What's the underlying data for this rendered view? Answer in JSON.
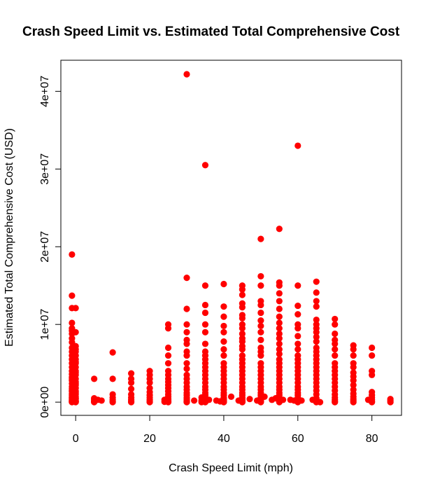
{
  "chart_data": {
    "type": "scatter",
    "title": "Crash Speed Limit vs. Estimated Total Comprehensive Cost",
    "xlabel": "Crash Speed Limit (mph)",
    "ylabel": "Estimated Total Comprehensive Cost (USD)",
    "xlim": [
      -4,
      88
    ],
    "ylim": [
      -1700000,
      44000000
    ],
    "xticks": [
      0,
      20,
      40,
      60,
      80
    ],
    "xtick_labels": [
      "0",
      "20",
      "40",
      "60",
      "80"
    ],
    "yticks": [
      0,
      10000000,
      20000000,
      30000000,
      40000000
    ],
    "ytick_labels": [
      "0e+00",
      "1e+07",
      "2e+07",
      "3e+07",
      "4e+07"
    ],
    "point_color": "#ff0000",
    "grid": false,
    "series": [
      {
        "x": [
          -1,
          -1,
          -1,
          -1,
          -1,
          -1,
          -1,
          -1,
          -1,
          -1,
          -1,
          -1,
          -1,
          -1,
          -1,
          -1,
          -1,
          -1,
          -1,
          -1,
          -1,
          -1,
          -1,
          -1,
          -1,
          -1,
          -1,
          -1,
          -1,
          -1,
          -1,
          -1,
          -1,
          -1,
          -1,
          -1,
          0,
          0,
          0,
          0,
          0,
          0,
          0,
          0,
          0,
          0,
          0,
          0,
          0,
          0,
          0,
          0,
          0,
          0,
          0,
          0,
          0,
          0,
          0,
          0,
          0,
          0,
          0,
          0,
          5,
          5,
          5,
          5,
          5,
          5,
          6,
          7,
          10,
          10,
          10,
          10,
          10,
          10,
          10,
          15,
          15,
          15,
          15,
          15,
          15,
          15,
          15,
          15,
          20,
          20,
          20,
          20,
          20,
          20,
          20,
          20,
          20,
          20,
          20,
          24,
          24,
          25,
          25,
          25,
          25,
          25,
          25,
          25,
          25,
          25,
          25,
          25,
          25,
          25,
          25,
          25,
          25,
          25,
          25,
          25,
          30,
          30,
          30,
          30,
          30,
          30,
          30,
          30,
          30,
          30,
          30,
          30,
          30,
          30,
          30,
          30,
          30,
          30,
          30,
          30,
          30,
          30,
          30,
          30,
          32,
          34,
          34,
          34,
          35,
          35,
          35,
          35,
          35,
          35,
          35,
          35,
          35,
          35,
          35,
          35,
          35,
          35,
          35,
          35,
          35,
          35,
          35,
          35,
          35,
          35,
          35,
          35,
          35,
          35,
          36,
          38,
          39,
          40,
          40,
          40,
          40,
          40,
          40,
          40,
          40,
          40,
          40,
          40,
          40,
          40,
          40,
          40,
          40,
          40,
          40,
          40,
          40,
          40,
          40,
          40,
          42,
          44,
          45,
          45,
          45,
          45,
          45,
          45,
          45,
          45,
          45,
          45,
          45,
          45,
          45,
          45,
          45,
          45,
          45,
          45,
          45,
          45,
          45,
          45,
          45,
          45,
          45,
          45,
          45,
          45,
          45,
          45,
          45,
          45,
          47,
          49,
          50,
          50,
          50,
          50,
          50,
          50,
          50,
          50,
          50,
          50,
          50,
          50,
          50,
          50,
          50,
          50,
          50,
          50,
          50,
          50,
          50,
          50,
          50,
          50,
          50,
          50,
          50,
          50,
          51,
          53,
          54,
          55,
          55,
          55,
          55,
          55,
          55,
          55,
          55,
          55,
          55,
          55,
          55,
          55,
          55,
          55,
          55,
          55,
          55,
          55,
          55,
          55,
          55,
          55,
          55,
          55,
          55,
          55,
          55,
          55,
          55,
          56,
          58,
          59,
          60,
          60,
          60,
          60,
          60,
          60,
          60,
          60,
          60,
          60,
          60,
          60,
          60,
          60,
          60,
          60,
          60,
          60,
          60,
          60,
          60,
          60,
          60,
          60,
          60,
          60,
          61,
          64,
          65,
          65,
          65,
          65,
          65,
          65,
          65,
          65,
          65,
          65,
          65,
          65,
          65,
          65,
          65,
          65,
          65,
          65,
          65,
          65,
          65,
          65,
          65,
          65,
          65,
          66,
          70,
          70,
          70,
          70,
          70,
          70,
          70,
          70,
          70,
          70,
          70,
          70,
          70,
          70,
          70,
          70,
          70,
          70,
          70,
          70,
          75,
          75,
          75,
          75,
          75,
          75,
          75,
          75,
          75,
          75,
          75,
          75,
          75,
          75,
          75,
          79,
          80,
          80,
          80,
          80,
          80,
          80,
          80,
          80,
          80,
          80,
          85,
          85,
          85
        ],
        "y": [
          19000000,
          13700000,
          12100000,
          10200000,
          9500000,
          8800000,
          7700000,
          7000000,
          6500000,
          6000000,
          5500000,
          5000000,
          4500000,
          4000000,
          3600000,
          3200000,
          2800000,
          2400000,
          2000000,
          1700000,
          1400000,
          1100000,
          900000,
          700000,
          500000,
          350000,
          200000,
          100000,
          50000,
          0,
          8200000,
          9200000,
          3000000,
          1500000,
          600000,
          250000,
          12100000,
          9000000,
          7200000,
          6500000,
          6000000,
          5500000,
          5000000,
          4500000,
          4000000,
          3500000,
          3000000,
          2600000,
          2200000,
          1800000,
          1400000,
          1000000,
          700000,
          400000,
          200000,
          100000,
          0,
          6800000,
          5200000,
          3800000,
          2400000,
          1200000,
          500000,
          50000,
          3000000,
          500000,
          300000,
          150000,
          50000,
          0,
          300000,
          200000,
          6400000,
          3000000,
          1000000,
          600000,
          300000,
          100000,
          0,
          3700000,
          3000000,
          2500000,
          1700000,
          1000000,
          600000,
          300000,
          100000,
          0,
          4000000,
          3500000,
          3000000,
          2500000,
          1800000,
          1300000,
          900000,
          600000,
          300000,
          100000,
          0,
          300000,
          50000,
          10000000,
          9500000,
          7000000,
          6000000,
          5000000,
          4000000,
          3500000,
          3000000,
          2600000,
          2200000,
          1800000,
          1400000,
          1000000,
          700000,
          400000,
          200000,
          100000,
          50000,
          0,
          42200000,
          16000000,
          12000000,
          10000000,
          9000000,
          7500000,
          6500000,
          6000000,
          5000000,
          4300000,
          3500000,
          3000000,
          2500000,
          2000000,
          1600000,
          1200000,
          900000,
          600000,
          400000,
          200000,
          100000,
          50000,
          0,
          8000000,
          200000,
          600000,
          200000,
          0,
          30500000,
          15000000,
          12500000,
          11500000,
          10000000,
          9000000,
          7500000,
          6500000,
          6000000,
          5000000,
          4500000,
          4000000,
          3500000,
          3000000,
          2500000,
          2000000,
          1600000,
          1200000,
          900000,
          600000,
          400000,
          200000,
          100000,
          50000,
          0,
          5500000,
          300000,
          200000,
          100000,
          15200000,
          12300000,
          11000000,
          9800000,
          9000000,
          7800000,
          6800000,
          6000000,
          5000000,
          4500000,
          4000000,
          3500000,
          3000000,
          2500000,
          2000000,
          1600000,
          1200000,
          900000,
          600000,
          400000,
          200000,
          100000,
          0,
          700000,
          200000,
          15000000,
          14500000,
          13800000,
          12700000,
          12200000,
          11200000,
          10800000,
          10000000,
          9500000,
          8800000,
          8200000,
          7800000,
          7200000,
          6800000,
          6000000,
          5500000,
          5000000,
          4500000,
          4000000,
          3500000,
          3000000,
          2500000,
          2000000,
          1600000,
          1200000,
          900000,
          600000,
          400000,
          200000,
          100000,
          50000,
          0,
          400000,
          200000,
          21000000,
          16200000,
          15000000,
          13000000,
          12500000,
          11500000,
          10500000,
          9800000,
          9000000,
          8000000,
          7000000,
          6500000,
          6000000,
          5000000,
          4500000,
          4000000,
          3500000,
          3000000,
          2500000,
          2000000,
          1600000,
          1200000,
          900000,
          600000,
          400000,
          200000,
          100000,
          0,
          700000,
          300000,
          500000,
          22300000,
          15400000,
          15000000,
          14000000,
          13000000,
          12000000,
          11000000,
          10200000,
          9500000,
          8800000,
          8200000,
          7500000,
          6800000,
          6200000,
          5500000,
          5000000,
          4500000,
          4000000,
          3500000,
          3000000,
          2500000,
          2000000,
          1600000,
          1200000,
          900000,
          600000,
          400000,
          200000,
          100000,
          0,
          300000,
          300000,
          200000,
          33000000,
          15000000,
          12400000,
          11300000,
          10000000,
          9500000,
          8500000,
          7500000,
          6800000,
          6000000,
          5500000,
          5000000,
          4500000,
          4000000,
          3500000,
          3000000,
          2500000,
          2000000,
          1600000,
          1200000,
          900000,
          600000,
          400000,
          200000,
          100000,
          0,
          200000,
          300000,
          15500000,
          14100000,
          13000000,
          12300000,
          10600000,
          10000000,
          9500000,
          9000000,
          8400000,
          7800000,
          7000000,
          6500000,
          6000000,
          5500000,
          5000000,
          4500000,
          4000000,
          3500000,
          3000000,
          2500000,
          2000000,
          1500000,
          1000000,
          500000,
          0,
          0,
          10700000,
          10000000,
          8800000,
          8000000,
          7500000,
          6800000,
          6000000,
          5000000,
          4500000,
          4000000,
          3500000,
          3000000,
          2500000,
          2000000,
          1500000,
          1000000,
          600000,
          300000,
          100000,
          0,
          7300000,
          6800000,
          6000000,
          5000000,
          4500000,
          3800000,
          3300000,
          2800000,
          2200000,
          1600000,
          1100000,
          700000,
          400000,
          200000,
          0,
          300000,
          7000000,
          6000000,
          4000000,
          3500000,
          1300000,
          900000,
          600000,
          300000,
          100000,
          0,
          400000,
          200000,
          0
        ]
      }
    ]
  }
}
